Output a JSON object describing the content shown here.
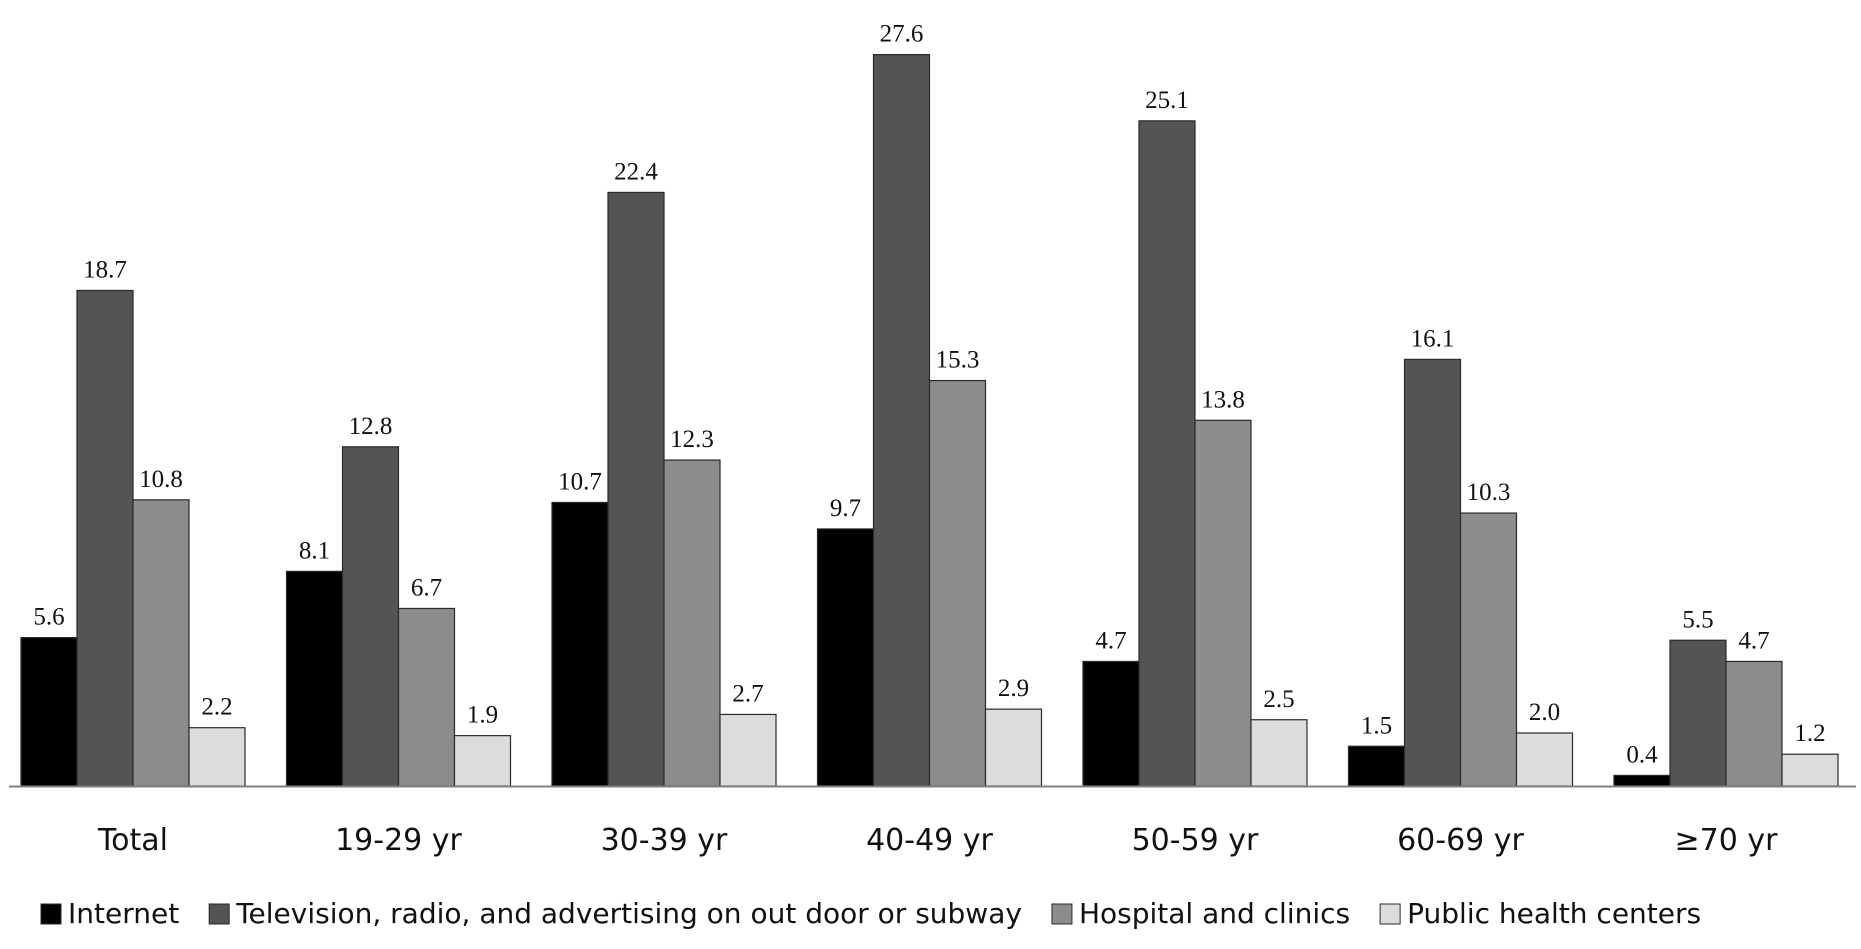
{
  "chart_data": {
    "type": "bar",
    "title": "",
    "xlabel": "",
    "ylabel": "",
    "ylim": [
      0,
      28
    ],
    "grid": false,
    "legend_position": "bottom",
    "categories": [
      "Total",
      "19-29 yr",
      "30-39 yr",
      "40-49 yr",
      "50-59 yr",
      "60-69 yr",
      "≥70 yr"
    ],
    "series": [
      {
        "name": "Internet",
        "color": "#000000",
        "values": [
          5.6,
          8.1,
          10.7,
          9.7,
          4.7,
          1.5,
          0.4
        ]
      },
      {
        "name": "Television, radio, and advertising on out door or subway",
        "color": "#545454",
        "values": [
          18.7,
          12.8,
          22.4,
          27.6,
          25.1,
          16.1,
          5.5
        ]
      },
      {
        "name": "Hospital and clinics",
        "color": "#8c8c8c",
        "values": [
          10.8,
          6.7,
          12.3,
          15.3,
          13.8,
          10.3,
          4.7
        ]
      },
      {
        "name": "Public health centers",
        "color": "#dcdcdc",
        "values": [
          2.2,
          1.9,
          2.7,
          2.9,
          2.5,
          2.0,
          1.2
        ]
      }
    ]
  }
}
